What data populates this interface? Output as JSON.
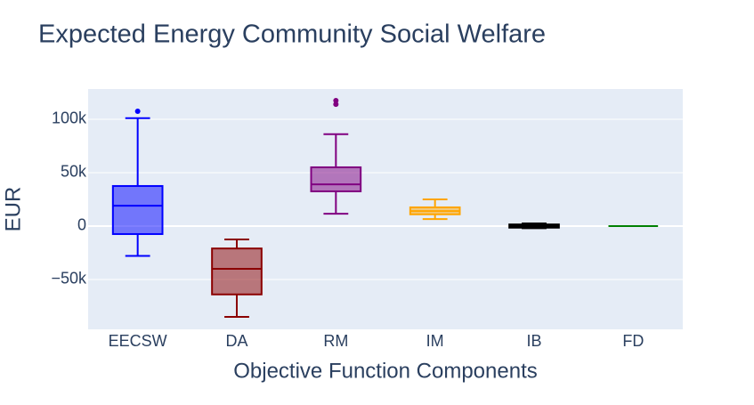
{
  "chart_data": {
    "type": "box",
    "title": "Expected Energy Community Social Welfare",
    "x_label": "Objective Function Components",
    "y_label": "EUR",
    "categories": [
      "EECSW",
      "DA",
      "RM",
      "IM",
      "IB",
      "FD"
    ],
    "boxes": [
      {
        "color": "#0000ff",
        "min": -28000,
        "q1": -7500,
        "median": 19000,
        "q3": 37500,
        "max": 101000,
        "outliers": [
          107500
        ]
      },
      {
        "color": "#8b0000",
        "min": -85000,
        "q1": -64000,
        "median": -40000,
        "q3": -21000,
        "max": -12500,
        "outliers": []
      },
      {
        "color": "#800080",
        "min": 11500,
        "q1": 32500,
        "median": 39000,
        "q3": 55000,
        "max": 86000,
        "outliers": [
          114000,
          117500
        ]
      },
      {
        "color": "#ffa500",
        "min": 6500,
        "q1": 11000,
        "median": 14000,
        "q3": 17500,
        "max": 25000,
        "outliers": []
      },
      {
        "color": "#000000",
        "min": -2000,
        "q1": -1500,
        "median": 0,
        "q3": 1500,
        "max": 2500,
        "outliers": []
      },
      {
        "color": "#008000",
        "min": 0,
        "q1": 0,
        "median": 0,
        "q3": 0,
        "max": 0,
        "outliers": []
      }
    ],
    "ylim": [
      -96700,
      128300
    ],
    "yticks": [
      {
        "value": -50000,
        "label": "−50k"
      },
      0,
      {
        "value": 50000,
        "label": "50k"
      },
      {
        "value": 100000,
        "label": "100k"
      }
    ],
    "grid": true
  }
}
